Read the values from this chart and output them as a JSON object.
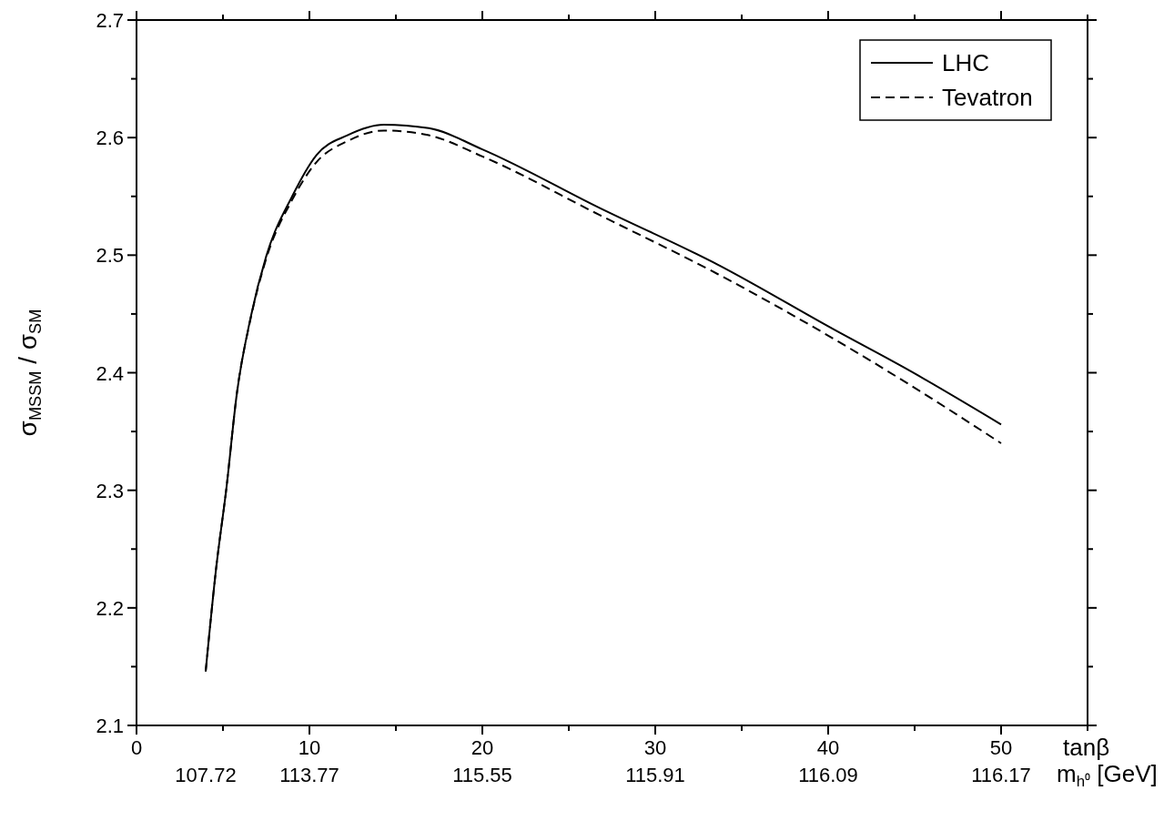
{
  "chart_data": {
    "type": "line",
    "xlabel": "tanβ",
    "ylabel": "σ$_{MSSM}$ / σ$_{SM}$",
    "x2label": "m$_{h⁰}$ [GeV]",
    "x": [
      4,
      4.6,
      5.2,
      5.8,
      6.6,
      7.5,
      9,
      10.4,
      12.2,
      14.3,
      16.9,
      20,
      26.8,
      33.6,
      40.3,
      44.8,
      50
    ],
    "series": [
      {
        "name": "LHC",
        "color": "#000000",
        "line_style": "solid",
        "values": [
          2.146,
          2.233,
          2.302,
          2.382,
          2.447,
          2.499,
          2.55,
          2.585,
          2.602,
          2.611,
          2.608,
          2.59,
          2.54,
          2.492,
          2.437,
          2.401,
          2.356
        ]
      },
      {
        "name": "Tevatron",
        "color": "#000000",
        "line_style": "dashed",
        "values": [
          2.146,
          2.233,
          2.302,
          2.382,
          2.446,
          2.497,
          2.547,
          2.579,
          2.597,
          2.606,
          2.602,
          2.584,
          2.534,
          2.484,
          2.429,
          2.389,
          2.34
        ]
      }
    ],
    "xlim": [
      0,
      55
    ],
    "xticks": [
      0,
      {
        "value": 5,
        "label": null
      },
      10,
      {
        "value": 15,
        "label": null
      },
      20,
      {
        "value": 25,
        "label": null
      },
      30,
      {
        "value": 35,
        "label": null
      },
      40,
      {
        "value": 45,
        "label": null
      },
      50,
      {
        "value": 55,
        "label": null
      }
    ],
    "annotations": [
      "107.72",
      "113.77",
      "115.55",
      "115.91",
      "116.09",
      "116.17"
    ],
    "ylim": [
      2.1,
      2.7
    ],
    "yticks": [
      2.1,
      {
        "value": 2.15,
        "label": null
      },
      2.2,
      {
        "value": 2.25,
        "label": null
      },
      2.3,
      {
        "value": 2.35,
        "label": null
      },
      2.4,
      {
        "value": 2.45,
        "label": null
      },
      2.5,
      {
        "value": 2.55,
        "label": null
      },
      2.6,
      {
        "value": 2.65,
        "label": null
      },
      2.7
    ],
    "legend": "top right",
    "grid": false
  }
}
